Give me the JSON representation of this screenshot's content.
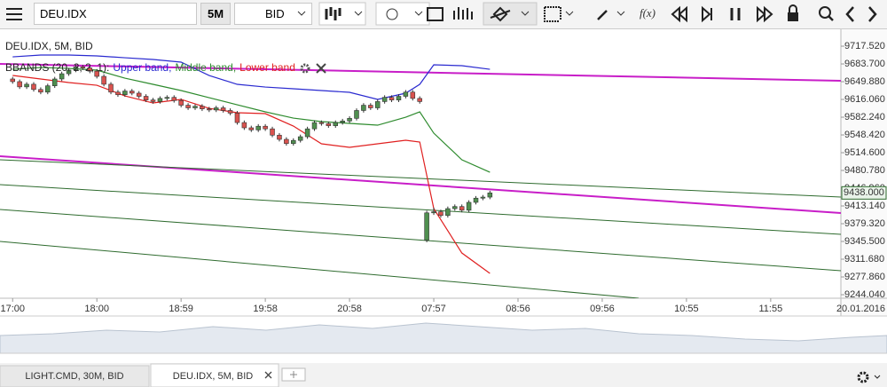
{
  "toolbar": {
    "instrument": "DEU.IDX",
    "period": "5M",
    "side": "BID"
  },
  "chart_data": {
    "type": "candlestick",
    "title": "DEU.IDX, 5M, BID",
    "indicator": "BBANDS (20, 2, 2, 1):",
    "up_color": "#4f8f4f",
    "down_color": "#d9534f",
    "x": [
      0,
      1,
      2,
      3,
      4,
      5,
      6,
      7,
      8,
      9,
      10,
      11,
      12,
      13,
      14,
      15,
      16,
      17,
      18,
      19,
      20,
      21,
      22,
      23,
      24,
      25,
      26,
      27,
      28,
      29,
      30,
      31,
      32,
      33,
      34,
      35,
      36,
      37,
      38,
      39,
      40,
      41,
      42,
      43,
      44,
      45,
      46,
      47,
      48,
      49,
      50,
      51,
      52,
      53,
      54,
      55,
      56,
      57,
      58,
      59,
      60,
      61,
      62,
      63,
      64,
      65,
      66,
      67,
      68
    ],
    "open": [
      9655,
      9650,
      9640,
      9645,
      9635,
      9630,
      9642,
      9655,
      9665,
      9672,
      9678,
      9676,
      9670,
      9660,
      9645,
      9630,
      9625,
      9632,
      9628,
      9622,
      9615,
      9612,
      9618,
      9620,
      9614,
      9605,
      9600,
      9603,
      9598,
      9596,
      9600,
      9595,
      9590,
      9572,
      9562,
      9558,
      9565,
      9560,
      9548,
      9540,
      9532,
      9538,
      9545,
      9560,
      9572,
      9570,
      9566,
      9572,
      9575,
      9580,
      9595,
      9605,
      9600,
      9612,
      9620,
      9615,
      9622,
      9630,
      9618,
      9348,
      9400,
      9402,
      9395,
      9408,
      9412,
      9405,
      9420,
      9428,
      9430
    ],
    "high": [
      9659,
      9654,
      9649,
      9649,
      9639,
      9646,
      9659,
      9669,
      9676,
      9682,
      9682,
      9680,
      9674,
      9664,
      9649,
      9634,
      9636,
      9636,
      9632,
      9626,
      9619,
      9622,
      9624,
      9624,
      9618,
      9609,
      9607,
      9607,
      9602,
      9604,
      9604,
      9599,
      9594,
      9576,
      9566,
      9569,
      9569,
      9564,
      9552,
      9544,
      9542,
      9549,
      9564,
      9576,
      9576,
      9574,
      9576,
      9579,
      9584,
      9599,
      9609,
      9609,
      9616,
      9624,
      9624,
      9626,
      9634,
      9634,
      9622,
      9404,
      9410,
      9406,
      9412,
      9416,
      9416,
      9424,
      9432,
      9434,
      9442
    ],
    "low": [
      9646,
      9636,
      9636,
      9631,
      9626,
      9626,
      9638,
      9651,
      9661,
      9668,
      9672,
      9666,
      9656,
      9641,
      9626,
      9621,
      9621,
      9624,
      9618,
      9611,
      9608,
      9608,
      9614,
      9610,
      9601,
      9596,
      9596,
      9594,
      9592,
      9592,
      9591,
      9586,
      9568,
      9558,
      9554,
      9554,
      9556,
      9544,
      9536,
      9528,
      9528,
      9534,
      9541,
      9556,
      9566,
      9562,
      9562,
      9568,
      9571,
      9576,
      9591,
      9596,
      9596,
      9608,
      9611,
      9611,
      9618,
      9614,
      9608,
      9344,
      9396,
      9391,
      9391,
      9404,
      9401,
      9401,
      9416,
      9424,
      9426
    ],
    "close": [
      9650,
      9640,
      9645,
      9635,
      9630,
      9642,
      9655,
      9665,
      9672,
      9678,
      9676,
      9670,
      9660,
      9645,
      9630,
      9625,
      9632,
      9628,
      9622,
      9615,
      9612,
      9618,
      9620,
      9614,
      9605,
      9600,
      9603,
      9598,
      9596,
      9600,
      9595,
      9590,
      9572,
      9562,
      9558,
      9565,
      9560,
      9548,
      9540,
      9532,
      9538,
      9545,
      9560,
      9572,
      9570,
      9566,
      9572,
      9575,
      9580,
      9595,
      9605,
      9600,
      9612,
      9620,
      9615,
      9622,
      9630,
      9618,
      9612,
      9400,
      9402,
      9395,
      9408,
      9412,
      9405,
      9420,
      9428,
      9430,
      9438
    ],
    "bands": {
      "x": [
        0,
        4,
        8,
        12,
        16,
        20,
        24,
        28,
        32,
        36,
        40,
        44,
        48,
        52,
        56,
        58,
        60,
        64,
        68
      ],
      "series": [
        {
          "name": "Upper band,",
          "color": "#2a2ad0",
          "values": [
            9697.2,
            9700.6,
            9700.6,
            9698.9,
            9695.5,
            9692.2,
            9687.1,
            9661.7,
            9644.8,
            9639.7,
            9636.4,
            9633.0,
            9629.6,
            9616.1,
            9627.9,
            9644.8,
            9682.0,
            9680.3,
            9673.5
          ]
        },
        {
          "name": "Middle band,",
          "color": "#2e8b2e",
          "values": [
            9673.5,
            9676.9,
            9675.2,
            9671.9,
            9656.6,
            9644.8,
            9633.0,
            9619.4,
            9605.9,
            9592.4,
            9580.5,
            9573.8,
            9570.4,
            9567.0,
            9582.2,
            9592.4,
            9551.8,
            9501.1,
            9477.4
          ]
        },
        {
          "name": "Lower band",
          "color": "#e02020",
          "values": [
            9661.7,
            9655.0,
            9648.2,
            9643.1,
            9622.8,
            9609.3,
            9616.1,
            9599.1,
            9590.7,
            9589.0,
            9565.3,
            9531.5,
            9524.8,
            9531.5,
            9538.3,
            9534.9,
            9408.1,
            9323.5,
            9284.6
          ]
        }
      ]
    },
    "lines": [
      {
        "color": "#c81ec8",
        "x": [
          -1.8,
          118
        ],
        "values": [
          9683.7,
          9651.6
        ]
      },
      {
        "color": "#c81ec8",
        "x": [
          -1.8,
          118
        ],
        "values": [
          9507.8,
          9399.6
        ]
      },
      {
        "color": "#2e6b2e",
        "x": [
          -1.8,
          118
        ],
        "values": [
          9501.1,
          9430.0
        ]
      },
      {
        "color": "#2e6b2e",
        "x": [
          -1.8,
          118
        ],
        "values": [
          9453.7,
          9359.0
        ]
      },
      {
        "color": "#2e6b2e",
        "x": [
          -1.8,
          118
        ],
        "values": [
          9406.4,
          9289.7
        ]
      },
      {
        "color": "#2e6b2e",
        "x": [
          -1.8,
          89.2
        ],
        "values": [
          9345.5,
          9237.3
        ]
      }
    ],
    "xlim": [
      -1.8,
      118
    ],
    "ylim": [
      9237.3,
      9746.3
    ],
    "xticks": [
      {
        "value": 0,
        "label": "17:00"
      },
      {
        "value": 12,
        "label": "18:00"
      },
      {
        "value": 24,
        "label": "18:59"
      },
      {
        "value": 36,
        "label": "19:58"
      },
      {
        "value": 48,
        "label": "20:58"
      },
      {
        "value": 60,
        "label": "07:57"
      },
      {
        "value": 72,
        "label": "08:56"
      },
      {
        "value": 84,
        "label": "09:56"
      },
      {
        "value": 96,
        "label": "10:55"
      },
      {
        "value": 108,
        "label": "11:55"
      }
    ],
    "yticks": [
      {
        "value": 9717.52,
        "label": "9717.520"
      },
      {
        "value": 9683.7,
        "label": "9683.700"
      },
      {
        "value": 9649.88,
        "label": "9649.880"
      },
      {
        "value": 9616.06,
        "label": "9616.060"
      },
      {
        "value": 9582.24,
        "label": "9582.240"
      },
      {
        "value": 9548.42,
        "label": "9548.420"
      },
      {
        "value": 9514.6,
        "label": "9514.600"
      },
      {
        "value": 9480.78,
        "label": "9480.780"
      },
      {
        "value": 9446.96,
        "label": "9446.960"
      },
      {
        "value": 9413.14,
        "label": "9413.140"
      },
      {
        "value": 9379.32,
        "label": "9379.320"
      },
      {
        "value": 9345.5,
        "label": "9345.500"
      },
      {
        "value": 9311.68,
        "label": "9311.680"
      },
      {
        "value": 9277.86,
        "label": "9277.860"
      },
      {
        "value": 9244.04,
        "label": "9244.040"
      }
    ],
    "last_price": {
      "value": 9438,
      "label": "9438.000"
    },
    "date_label": "20.01.2016"
  },
  "tabs": [
    {
      "label": "LIGHT.CMD, 30M, BID"
    },
    {
      "label": "DEU.IDX, 5M, BID"
    }
  ]
}
